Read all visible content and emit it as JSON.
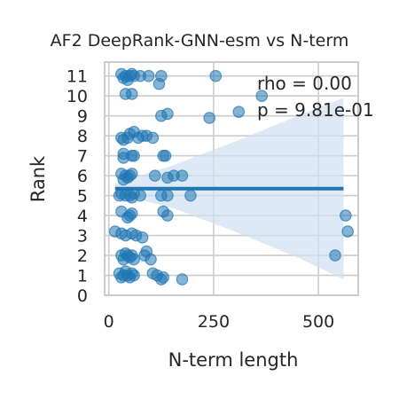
{
  "chart_data": {
    "type": "scatter",
    "title": "AF2 DeepRank-GNN-esm vs N-term",
    "xlabel": "N-term length",
    "ylabel": "Rank",
    "xlim": [
      -10,
      595
    ],
    "ylim": [
      0,
      11.7
    ],
    "xticks": [
      0,
      250,
      500
    ],
    "yticks": [
      0,
      1,
      2,
      3,
      4,
      5,
      6,
      7,
      8,
      9,
      10,
      11
    ],
    "grid": true,
    "annotations": [
      "rho = 0.00",
      "p = 9.81e-01"
    ],
    "regression": {
      "x_range": [
        15,
        560
      ],
      "y_value": 5.35,
      "ci_upper": [
        [
          15,
          5.6
        ],
        [
          150,
          6.5
        ],
        [
          300,
          7.7
        ],
        [
          450,
          9.0
        ],
        [
          560,
          9.9
        ]
      ],
      "ci_lower": [
        [
          15,
          5.1
        ],
        [
          150,
          4.4
        ],
        [
          300,
          3.2
        ],
        [
          450,
          1.9
        ],
        [
          560,
          0.8
        ]
      ]
    },
    "colors": {
      "points": "#1f77b4",
      "line": "#1f77b4",
      "ci_fill": "#cfe0f0",
      "grid": "#cccccc",
      "frame": "#cccccc"
    },
    "points": [
      {
        "x": 30,
        "y": 11.1
      },
      {
        "x": 40,
        "y": 11.0
      },
      {
        "x": 50,
        "y": 11.0
      },
      {
        "x": 35,
        "y": 10.9
      },
      {
        "x": 55,
        "y": 11.1
      },
      {
        "x": 45,
        "y": 10.8
      },
      {
        "x": 60,
        "y": 11.0
      },
      {
        "x": 75,
        "y": 11.0
      },
      {
        "x": 95,
        "y": 11.0
      },
      {
        "x": 125,
        "y": 11.0
      },
      {
        "x": 255,
        "y": 11.0
      },
      {
        "x": 120,
        "y": 10.6
      },
      {
        "x": 40,
        "y": 10.1
      },
      {
        "x": 55,
        "y": 10.1
      },
      {
        "x": 365,
        "y": 10.0
      },
      {
        "x": 125,
        "y": 9.0
      },
      {
        "x": 140,
        "y": 9.1
      },
      {
        "x": 240,
        "y": 8.9
      },
      {
        "x": 310,
        "y": 9.2
      },
      {
        "x": 30,
        "y": 7.9
      },
      {
        "x": 35,
        "y": 7.8
      },
      {
        "x": 50,
        "y": 8.1
      },
      {
        "x": 60,
        "y": 8.2
      },
      {
        "x": 45,
        "y": 7.9
      },
      {
        "x": 70,
        "y": 7.9
      },
      {
        "x": 80,
        "y": 8.0
      },
      {
        "x": 90,
        "y": 8.0
      },
      {
        "x": 105,
        "y": 7.9
      },
      {
        "x": 35,
        "y": 7.1
      },
      {
        "x": 35,
        "y": 6.9
      },
      {
        "x": 55,
        "y": 7.0
      },
      {
        "x": 60,
        "y": 7.0
      },
      {
        "x": 130,
        "y": 7.0
      },
      {
        "x": 135,
        "y": 7.0
      },
      {
        "x": 30,
        "y": 6.1
      },
      {
        "x": 40,
        "y": 6.0
      },
      {
        "x": 50,
        "y": 6.0
      },
      {
        "x": 55,
        "y": 6.1
      },
      {
        "x": 35,
        "y": 5.8
      },
      {
        "x": 45,
        "y": 5.9
      },
      {
        "x": 110,
        "y": 6.0
      },
      {
        "x": 155,
        "y": 6.0
      },
      {
        "x": 175,
        "y": 6.0
      },
      {
        "x": 140,
        "y": 5.9
      },
      {
        "x": 25,
        "y": 5.0
      },
      {
        "x": 30,
        "y": 5.1
      },
      {
        "x": 40,
        "y": 5.0
      },
      {
        "x": 50,
        "y": 5.0
      },
      {
        "x": 55,
        "y": 4.9
      },
      {
        "x": 60,
        "y": 5.1
      },
      {
        "x": 75,
        "y": 5.0
      },
      {
        "x": 125,
        "y": 5.0
      },
      {
        "x": 140,
        "y": 5.0
      },
      {
        "x": 195,
        "y": 5.0
      },
      {
        "x": 30,
        "y": 4.2
      },
      {
        "x": 45,
        "y": 3.9
      },
      {
        "x": 50,
        "y": 4.0
      },
      {
        "x": 55,
        "y": 4.1
      },
      {
        "x": 130,
        "y": 4.2
      },
      {
        "x": 140,
        "y": 4.0
      },
      {
        "x": 565,
        "y": 4.0
      },
      {
        "x": 15,
        "y": 3.2
      },
      {
        "x": 30,
        "y": 3.1
      },
      {
        "x": 40,
        "y": 3.0
      },
      {
        "x": 55,
        "y": 3.1
      },
      {
        "x": 65,
        "y": 3.0
      },
      {
        "x": 80,
        "y": 2.9
      },
      {
        "x": 570,
        "y": 3.2
      },
      {
        "x": 30,
        "y": 2.0
      },
      {
        "x": 35,
        "y": 1.8
      },
      {
        "x": 40,
        "y": 2.1
      },
      {
        "x": 45,
        "y": 2.0
      },
      {
        "x": 50,
        "y": 1.9
      },
      {
        "x": 55,
        "y": 2.0
      },
      {
        "x": 60,
        "y": 1.8
      },
      {
        "x": 85,
        "y": 2.0
      },
      {
        "x": 90,
        "y": 2.2
      },
      {
        "x": 100,
        "y": 1.8
      },
      {
        "x": 540,
        "y": 2.0
      },
      {
        "x": 25,
        "y": 1.1
      },
      {
        "x": 30,
        "y": 0.9
      },
      {
        "x": 35,
        "y": 1.0
      },
      {
        "x": 40,
        "y": 1.2
      },
      {
        "x": 45,
        "y": 1.0
      },
      {
        "x": 50,
        "y": 0.9
      },
      {
        "x": 55,
        "y": 1.1
      },
      {
        "x": 60,
        "y": 1.0
      },
      {
        "x": 105,
        "y": 1.1
      },
      {
        "x": 115,
        "y": 1.0
      },
      {
        "x": 125,
        "y": 0.8
      },
      {
        "x": 130,
        "y": 0.9
      },
      {
        "x": 175,
        "y": 0.8
      }
    ]
  }
}
